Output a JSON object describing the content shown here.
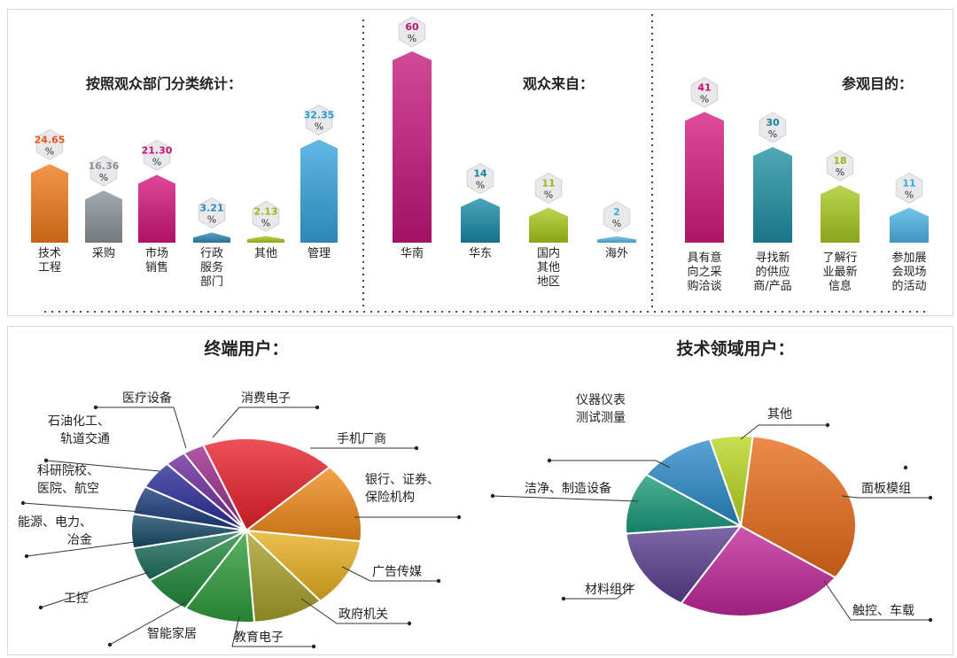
{
  "chart_data": [
    {
      "type": "bar",
      "title": "按照观众部门分类统计：",
      "categories": [
        "技术\n工程",
        "采购",
        "市场\n销售",
        "行政\n服务\n部门",
        "其他",
        "管理"
      ],
      "values": [
        24.65,
        16.36,
        21.3,
        3.21,
        2.13,
        32.35
      ],
      "labels": [
        "24.65",
        "16.36",
        "21.30",
        "3.21",
        "2.13",
        "32.35"
      ],
      "unit": "%",
      "colors": [
        "#f07a1a",
        "#8c9299",
        "#d4157a",
        "#2d8ab8",
        "#b0c81f",
        "#36a3de"
      ],
      "label_colors": [
        "#e8541b",
        "#8c9299",
        "#c4166f",
        "#2d8ab8",
        "#9fb51d",
        "#2a9ad4"
      ]
    },
    {
      "type": "bar",
      "title": "观众来自：",
      "categories": [
        "华南",
        "华东",
        "国内\n其他\n地区",
        "海外"
      ],
      "values": [
        60,
        14,
        11,
        2
      ],
      "labels": [
        "60",
        "14",
        "11",
        "2"
      ],
      "unit": "%",
      "colors": [
        "#c4167a",
        "#1a8aa8",
        "#a8c91d",
        "#55b8e8"
      ],
      "label_colors": [
        "#b3156f",
        "#1a7f9c",
        "#99b61b",
        "#3aa8dc"
      ]
    },
    {
      "type": "bar",
      "title": "参观目的：",
      "categories": [
        "具有意\n向之采\n购洽谈",
        "寻找新\n的供应\n商/产品",
        "了解行\n业最新\n信息",
        "参加展\n会现场\n的活动"
      ],
      "values": [
        41,
        30,
        18,
        11
      ],
      "labels": [
        "41",
        "30",
        "18",
        "11"
      ],
      "unit": "%",
      "colors": [
        "#d41a7e",
        "#1f8fa3",
        "#a9c820",
        "#4db4e6"
      ],
      "label_colors": [
        "#c4166f",
        "#1a7f9c",
        "#99b61b",
        "#3aa8dc"
      ]
    },
    {
      "type": "pie",
      "title": "终端用户：",
      "categories": [
        "手机厂商",
        "银行、证券、\n保险机构",
        "广告传媒",
        "政府机关",
        "教育电子",
        "智能家居",
        "工控",
        "能源、电力、\n冶金",
        "科研院校、\n医院、航空",
        "石油化工、\n轨道交通",
        "医疗设备",
        "消费电子"
      ],
      "values": [
        19,
        14,
        12,
        10,
        10,
        7,
        6,
        6,
        5,
        5,
        3,
        3
      ],
      "colors": [
        "#e8202a",
        "#f08a1a",
        "#e6b020",
        "#a8a02a",
        "#2e9e3a",
        "#1e8a3a",
        "#1e6e5a",
        "#174a66",
        "#1a3a7a",
        "#2a2a9a",
        "#6a2a9a",
        "#9a2a8a"
      ]
    },
    {
      "type": "pie",
      "title": "技术领域用户：",
      "categories": [
        "面板模组",
        "触控、车载",
        "材料组件",
        "洁净、制造设备",
        "仪器仪表\n测试测量",
        "其他"
      ],
      "values": [
        33,
        24,
        15,
        11,
        11,
        6
      ],
      "colors": [
        "#e86a1a",
        "#c0269a",
        "#5a3e8e",
        "#1a9a7a",
        "#2a8ac8",
        "#b8d61e"
      ]
    }
  ]
}
